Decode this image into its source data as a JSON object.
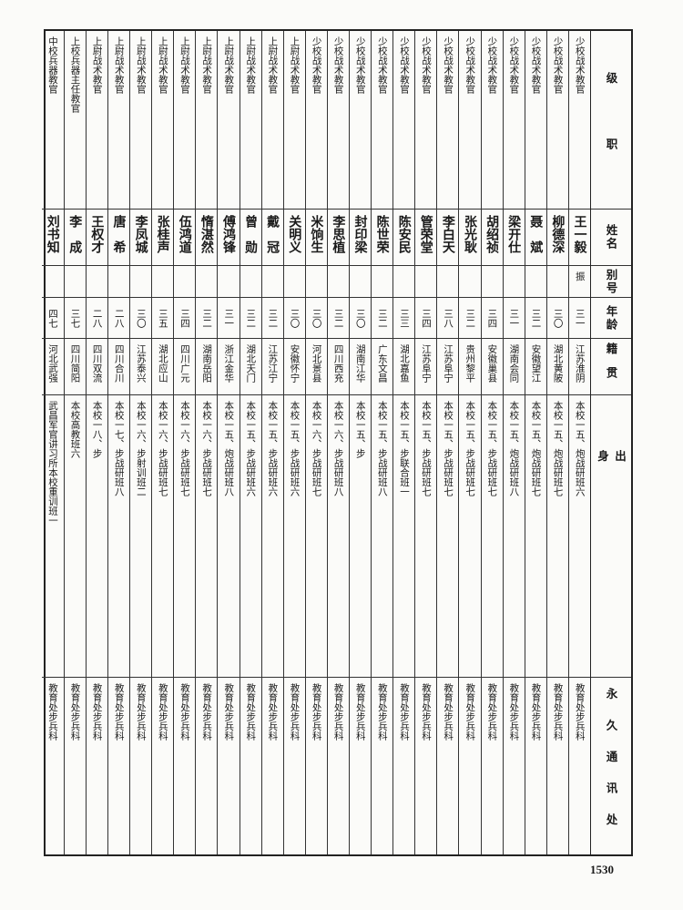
{
  "headers": {
    "rank": "级职",
    "name": "姓名",
    "alias": "别号",
    "age": "年龄",
    "native": "籍贯",
    "origin": "出身",
    "address": "永久通讯处"
  },
  "rows": [
    {
      "rank": "少校战术教官",
      "name": "王一毅",
      "alias": "振",
      "age": "三一",
      "native": "江苏淮阴",
      "origin": "本校一五、炮战研班六",
      "address": "教育处步兵科"
    },
    {
      "rank": "少校战术教官",
      "name": "柳德深",
      "alias": "",
      "age": "三〇",
      "native": "湖北黄陂",
      "origin": "本校一五、炮战研班七",
      "address": "教育处步兵科"
    },
    {
      "rank": "少校战术教官",
      "name": "聂　斌",
      "alias": "",
      "age": "三二",
      "native": "安徽望江",
      "origin": "本校一五、炮战研班七",
      "address": "教育处步兵科"
    },
    {
      "rank": "少校战术教官",
      "name": "梁开仕",
      "alias": "",
      "age": "三一",
      "native": "湖南会同",
      "origin": "本校一五、炮战研班八",
      "address": "教育处步兵科"
    },
    {
      "rank": "少校战术教官",
      "name": "胡绍祯",
      "alias": "",
      "age": "三四",
      "native": "安徽巢县",
      "origin": "本校一五、步战研班七",
      "address": "教育处步兵科"
    },
    {
      "rank": "少校战术教官",
      "name": "张光耿",
      "alias": "",
      "age": "三二",
      "native": "贵州黎平",
      "origin": "本校一五、步战研班七",
      "address": "教育处步兵科"
    },
    {
      "rank": "少校战术教官",
      "name": "李白天",
      "alias": "",
      "age": "三八",
      "native": "江苏阜宁",
      "origin": "本校一五、步战研班七",
      "address": "教育处步兵科"
    },
    {
      "rank": "少校战术教官",
      "name": "管荣堂",
      "alias": "",
      "age": "三四",
      "native": "江苏阜宁",
      "origin": "本校一五、步战研班七",
      "address": "教育处步兵科"
    },
    {
      "rank": "少校战术教官",
      "name": "陈安民",
      "alias": "",
      "age": "三三",
      "native": "湖北嘉鱼",
      "origin": "本校一五、步联合班一",
      "address": "教育处步兵科"
    },
    {
      "rank": "少校战术教官",
      "name": "陈世荣",
      "alias": "",
      "age": "三二",
      "native": "广东文昌",
      "origin": "本校一五、步战研班八",
      "address": "教育处步兵科"
    },
    {
      "rank": "少校战术教官",
      "name": "封印梁",
      "alias": "",
      "age": "三〇",
      "native": "湖南江华",
      "origin": "本校一五、步",
      "address": "教育处步兵科"
    },
    {
      "rank": "少校战术教官",
      "name": "李思植",
      "alias": "",
      "age": "三二",
      "native": "四川西充",
      "origin": "本校一六、步战研班八",
      "address": "教育处步兵科"
    },
    {
      "rank": "少校战术教官",
      "name": "米饷生",
      "alias": "",
      "age": "三〇",
      "native": "河北景县",
      "origin": "本校一六、步战研班七",
      "address": "教育处步兵科"
    },
    {
      "rank": "上尉战术教官",
      "name": "关明义",
      "alias": "",
      "age": "三〇",
      "native": "安徽怀宁",
      "origin": "本校一五、步战研班六",
      "address": "教育处步兵科"
    },
    {
      "rank": "上尉战术教官",
      "name": "戴　冠",
      "alias": "",
      "age": "三二",
      "native": "江苏江宁",
      "origin": "本校一五、步战研班六",
      "address": "教育处步兵科"
    },
    {
      "rank": "上尉战术教官",
      "name": "曾　勋",
      "alias": "",
      "age": "三二",
      "native": "湖北天门",
      "origin": "本校一五、步战研班六",
      "address": "教育处步兵科"
    },
    {
      "rank": "上尉战术教官",
      "name": "傅鸿锋",
      "alias": "",
      "age": "三一",
      "native": "浙江金华",
      "origin": "本校一五、炮战研班八",
      "address": "教育处步兵科"
    },
    {
      "rank": "上尉战术教官",
      "name": "惰湛然",
      "alias": "",
      "age": "三二",
      "native": "湖南岳阳",
      "origin": "本校一六、步战研班七",
      "address": "教育处步兵科"
    },
    {
      "rank": "上尉战术教官",
      "name": "伍鸿道",
      "alias": "",
      "age": "三四",
      "native": "四川广元",
      "origin": "本校一六、步战研班七",
      "address": "教育处步兵科"
    },
    {
      "rank": "上尉战术教官",
      "name": "张桂声",
      "alias": "",
      "age": "三五",
      "native": "湖北应山",
      "origin": "本校一六、步战研班七",
      "address": "教育处步兵科"
    },
    {
      "rank": "上尉战术教官",
      "name": "李凤城",
      "alias": "",
      "age": "三〇",
      "native": "江苏泰兴",
      "origin": "本校一六、步射训班二",
      "address": "教育处步兵科"
    },
    {
      "rank": "上尉战术教官",
      "name": "唐　希",
      "alias": "",
      "age": "二八",
      "native": "四川合川",
      "origin": "本校一七、步战研班八",
      "address": "教育处步兵科"
    },
    {
      "rank": "上尉战术教官",
      "name": "王权才",
      "alias": "",
      "age": "二八",
      "native": "四川双流",
      "origin": "本校一八、步",
      "address": "教育处步兵科"
    },
    {
      "rank": "上校兵器主任教官",
      "name": "李　成",
      "alias": "",
      "age": "三七",
      "native": "四川简阳",
      "origin": "本校高教班六",
      "address": "教育处步兵科"
    },
    {
      "rank": "中校兵器教官",
      "name": "刘书知",
      "alias": "",
      "age": "四七",
      "native": "河北武强",
      "origin": "武昌军官讲习所本校重训班一",
      "address": "教育处步兵科"
    }
  ],
  "page_number": "1530"
}
